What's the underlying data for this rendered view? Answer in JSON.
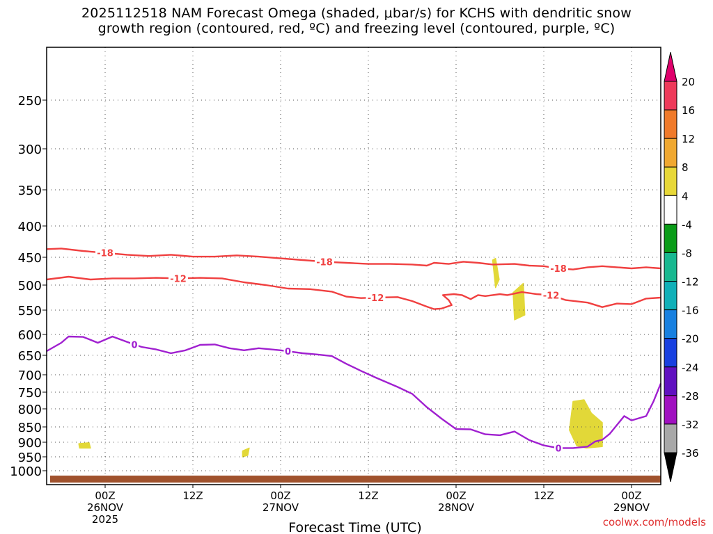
{
  "chart_data": {
    "type": "time-height",
    "title_line1": "2025112518 NAM Forecast Omega (shaded, μbar/s) for KCHS with dendritic snow",
    "title_line2": "growth region (contoured, red, ºC) and freezing level (contoured, purple, ºC)",
    "xlabel": "Forecast Time (UTC)",
    "credit": "coolwx.com/models",
    "time_range_hours": [
      -8,
      76
    ],
    "x_ticks": [
      {
        "h": 0,
        "label": "00Z",
        "date": "26NOV",
        "year": "2025"
      },
      {
        "h": 12,
        "label": "12Z"
      },
      {
        "h": 24,
        "label": "00Z",
        "date": "27NOV"
      },
      {
        "h": 36,
        "label": "12Z"
      },
      {
        "h": 48,
        "label": "00Z",
        "date": "28NOV"
      },
      {
        "h": 60,
        "label": "12Z"
      },
      {
        "h": 72,
        "label": "00Z",
        "date": "29NOV"
      }
    ],
    "y_ticks": [
      250,
      300,
      350,
      400,
      450,
      500,
      550,
      600,
      650,
      700,
      750,
      800,
      850,
      900,
      950,
      1000
    ],
    "colorbar": {
      "labels": [
        "20",
        "16",
        "12",
        "8",
        "4",
        "-4",
        "-8",
        "-12",
        "-16",
        "-20",
        "-24",
        "-28",
        "-32",
        "-36"
      ],
      "colors": [
        "#ee3a5a",
        "#f07a2a",
        "#f0a830",
        "#e8d838",
        "#ffffff",
        "#0a9c18",
        "#18b890",
        "#10b0b8",
        "#1880e0",
        "#1840e0",
        "#6010c0",
        "#a010c0",
        "#a8a8a8"
      ],
      "top_color": "#e0006c",
      "bottom_color": "#000000"
    },
    "contours": [
      {
        "name": "-18C",
        "label": "-18",
        "color": "#f04040",
        "labels_at_h": [
          0,
          30,
          62
        ],
        "points": [
          [
            -8,
            437
          ],
          [
            -6,
            436
          ],
          [
            -3,
            440
          ],
          [
            0,
            443
          ],
          [
            3,
            446
          ],
          [
            6,
            448
          ],
          [
            9,
            446
          ],
          [
            12,
            449
          ],
          [
            15,
            449
          ],
          [
            18,
            447
          ],
          [
            21,
            449
          ],
          [
            24,
            452
          ],
          [
            27,
            455
          ],
          [
            30,
            458
          ],
          [
            33,
            460
          ],
          [
            36,
            462
          ],
          [
            39,
            462
          ],
          [
            42,
            463
          ],
          [
            44,
            465
          ],
          [
            45,
            460
          ],
          [
            47,
            462
          ],
          [
            49,
            458
          ],
          [
            51,
            460
          ],
          [
            53,
            463
          ],
          [
            56,
            462
          ],
          [
            58,
            465
          ],
          [
            60,
            466
          ],
          [
            62,
            470
          ],
          [
            64,
            472
          ],
          [
            66,
            468
          ],
          [
            68,
            466
          ],
          [
            70,
            468
          ],
          [
            72,
            470
          ],
          [
            74,
            468
          ],
          [
            76,
            470
          ]
        ]
      },
      {
        "name": "-12C",
        "label": "-12",
        "color": "#f04040",
        "labels_at_h": [
          10,
          37,
          61
        ],
        "points": [
          [
            -8,
            490
          ],
          [
            -5,
            485
          ],
          [
            -2,
            490
          ],
          [
            1,
            488
          ],
          [
            4,
            488
          ],
          [
            7,
            487
          ],
          [
            10,
            488
          ],
          [
            13,
            487
          ],
          [
            16,
            488
          ],
          [
            19,
            495
          ],
          [
            22,
            500
          ],
          [
            25,
            507
          ],
          [
            28,
            508
          ],
          [
            31,
            513
          ],
          [
            33,
            523
          ],
          [
            35,
            526
          ],
          [
            37,
            525
          ],
          [
            40,
            524
          ],
          [
            42,
            532
          ],
          [
            44,
            543
          ],
          [
            45,
            548
          ],
          [
            46,
            547
          ],
          [
            47.4,
            540
          ],
          [
            47,
            530
          ],
          [
            46.2,
            520
          ],
          [
            47.7,
            518
          ],
          [
            48.8,
            520
          ],
          [
            50,
            528
          ],
          [
            51,
            520
          ],
          [
            52,
            522
          ],
          [
            53,
            520
          ],
          [
            54,
            518
          ],
          [
            55,
            520
          ],
          [
            57,
            514
          ],
          [
            59,
            518
          ],
          [
            61,
            520
          ],
          [
            63,
            530
          ],
          [
            66,
            535
          ],
          [
            68,
            544
          ],
          [
            70,
            537
          ],
          [
            72,
            538
          ],
          [
            74,
            527
          ],
          [
            76,
            525
          ]
        ]
      },
      {
        "name": "0C",
        "label": "0",
        "color": "#a020d0",
        "labels_at_h": [
          4,
          25,
          62
        ],
        "points": [
          [
            -8,
            640
          ],
          [
            -6,
            620
          ],
          [
            -5,
            605
          ],
          [
            -3,
            606
          ],
          [
            -1,
            620
          ],
          [
            1,
            605
          ],
          [
            3,
            618
          ],
          [
            5,
            630
          ],
          [
            7,
            636
          ],
          [
            9,
            645
          ],
          [
            11,
            638
          ],
          [
            13,
            625
          ],
          [
            15,
            624
          ],
          [
            17,
            633
          ],
          [
            19,
            638
          ],
          [
            21,
            633
          ],
          [
            24,
            638
          ],
          [
            27,
            645
          ],
          [
            29,
            648
          ],
          [
            31,
            652
          ],
          [
            33,
            672
          ],
          [
            35,
            690
          ],
          [
            37,
            708
          ],
          [
            40,
            735
          ],
          [
            42,
            755
          ],
          [
            44,
            795
          ],
          [
            46,
            827
          ],
          [
            48,
            857
          ],
          [
            50,
            858
          ],
          [
            52,
            874
          ],
          [
            54,
            877
          ],
          [
            56,
            865
          ],
          [
            58,
            893
          ],
          [
            60,
            911
          ],
          [
            62,
            920
          ],
          [
            64,
            920
          ],
          [
            66,
            915
          ],
          [
            67,
            898
          ],
          [
            68,
            892
          ],
          [
            69,
            873
          ],
          [
            71,
            820
          ],
          [
            72,
            832
          ],
          [
            74,
            820
          ],
          [
            75,
            778
          ],
          [
            76,
            725
          ]
        ]
      }
    ],
    "omega_patches": [
      {
        "name": "patch-955",
        "value": "4 to 8",
        "points": [
          [
            -3.6,
            905
          ],
          [
            -2.2,
            902
          ],
          [
            -2,
            920
          ],
          [
            -3.5,
            920
          ]
        ]
      },
      {
        "name": "patch-930",
        "value": "4 to 8",
        "points": [
          [
            18.8,
            930
          ],
          [
            19.7,
            920
          ],
          [
            19.5,
            945
          ],
          [
            18.8,
            950
          ]
        ]
      },
      {
        "name": "patch-475",
        "value": "4 to 8",
        "points": [
          [
            53,
            455
          ],
          [
            53.4,
            452
          ],
          [
            53.9,
            490
          ],
          [
            53.4,
            505
          ]
        ]
      },
      {
        "name": "patch-535",
        "value": "4 to 8",
        "points": [
          [
            55.8,
            515
          ],
          [
            57.2,
            497
          ],
          [
            57.4,
            560
          ],
          [
            56,
            570
          ]
        ]
      },
      {
        "name": "patch-850",
        "value": "4 to 8",
        "points": [
          [
            64,
            778
          ],
          [
            65.5,
            773
          ],
          [
            66.5,
            812
          ],
          [
            68,
            838
          ],
          [
            68,
            915
          ],
          [
            65.8,
            920
          ],
          [
            64.5,
            912
          ],
          [
            63.5,
            860
          ]
        ]
      }
    ],
    "ground_level_hpa": 1010
  }
}
